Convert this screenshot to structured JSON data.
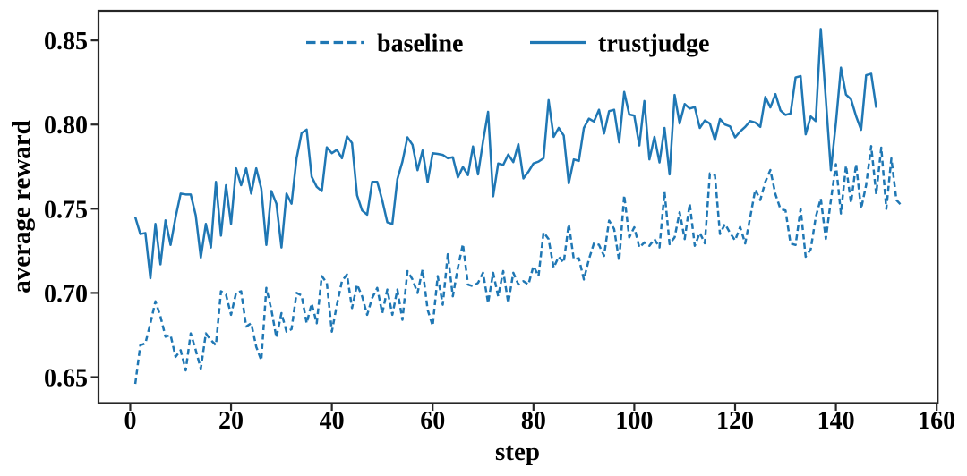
{
  "figure": {
    "background": "#ffffff",
    "spine_color": "#262626",
    "accent_color": "#1f77b4"
  },
  "chart_data": {
    "type": "line",
    "title": "",
    "xlabel": "step",
    "ylabel": "average reward",
    "grid": false,
    "legend_position": "upper center",
    "legend_frame": false,
    "xlim": [
      -6.3,
      160.2
    ],
    "ylim": [
      0.6346,
      0.8676
    ],
    "xticks": [
      0,
      20,
      40,
      60,
      80,
      100,
      120,
      140,
      160
    ],
    "xtick_labels": [
      "0",
      "20",
      "40",
      "60",
      "80",
      "100",
      "120",
      "140",
      "160"
    ],
    "yticks": [
      0.65,
      0.7,
      0.75,
      0.8,
      0.85
    ],
    "ytick_labels": [
      "0.65",
      "0.70",
      "0.75",
      "0.80",
      "0.85"
    ],
    "legend": [
      {
        "label": "baseline",
        "style": "dashed",
        "color": "#1f77b4"
      },
      {
        "label": "trustjudge",
        "style": "solid",
        "color": "#1f77b4"
      }
    ],
    "series": [
      {
        "name": "baseline",
        "style": "dashed",
        "color": "#1f77b4",
        "x_start": 1,
        "x_step": 1,
        "values": [
          0.646,
          0.669,
          0.67,
          0.682,
          0.695,
          0.686,
          0.674,
          0.675,
          0.662,
          0.666,
          0.654,
          0.676,
          0.666,
          0.655,
          0.676,
          0.672,
          0.669,
          0.701,
          0.699,
          0.687,
          0.7,
          0.701,
          0.68,
          0.682,
          0.668,
          0.66,
          0.703,
          0.69,
          0.6735,
          0.688,
          0.677,
          0.6785,
          0.7,
          0.6985,
          0.682,
          0.6937,
          0.682,
          0.71,
          0.706,
          0.677,
          0.693,
          0.707,
          0.711,
          0.691,
          0.705,
          0.698,
          0.687,
          0.697,
          0.703,
          0.688,
          0.702,
          0.687,
          0.702,
          0.684,
          0.713,
          0.708,
          0.7,
          0.714,
          0.69,
          0.6805,
          0.71,
          0.693,
          0.723,
          0.698,
          0.715,
          0.729,
          0.705,
          0.704,
          0.706,
          0.712,
          0.694,
          0.712,
          0.698,
          0.713,
          0.694,
          0.712,
          0.705,
          0.707,
          0.705,
          0.716,
          0.71,
          0.736,
          0.732,
          0.715,
          0.7215,
          0.718,
          0.741,
          0.72,
          0.7206,
          0.708,
          0.72,
          0.7295,
          0.7286,
          0.722,
          0.743,
          0.738,
          0.719,
          0.758,
          0.733,
          0.739,
          0.727,
          0.73,
          0.728,
          0.732,
          0.727,
          0.76,
          0.729,
          0.733,
          0.748,
          0.732,
          0.753,
          0.728,
          0.7357,
          0.7295,
          0.771,
          0.77,
          0.735,
          0.741,
          0.7356,
          0.7312,
          0.7392,
          0.7294,
          0.745,
          0.7614,
          0.7552,
          0.766,
          0.773,
          0.7587,
          0.7499,
          0.749,
          0.7294,
          0.7285,
          0.7499,
          0.7215,
          0.7259,
          0.745,
          0.7561,
          0.7321,
          0.755,
          0.7765,
          0.7472,
          0.7756,
          0.7534,
          0.7765,
          0.7499,
          0.7641,
          0.7872,
          0.7587,
          0.7863,
          0.7499,
          0.7799,
          0.7552,
          0.752
        ]
      },
      {
        "name": "trustjudge",
        "style": "solid",
        "color": "#1f77b4",
        "x_start": 1,
        "x_step": 1,
        "values": [
          0.745,
          0.735,
          0.7356,
          0.7087,
          0.741,
          0.717,
          0.7431,
          0.7285,
          0.745,
          0.759,
          0.7585,
          0.7585,
          0.746,
          0.721,
          0.741,
          0.727,
          0.766,
          0.734,
          0.764,
          0.741,
          0.774,
          0.764,
          0.774,
          0.759,
          0.774,
          0.762,
          0.7285,
          0.7605,
          0.753,
          0.727,
          0.759,
          0.753,
          0.78,
          0.795,
          0.797,
          0.769,
          0.763,
          0.7605,
          0.7865,
          0.783,
          0.785,
          0.78,
          0.793,
          0.789,
          0.758,
          0.749,
          0.7465,
          0.766,
          0.766,
          0.755,
          0.742,
          0.741,
          0.7676,
          0.778,
          0.7924,
          0.788,
          0.7729,
          0.7846,
          0.7658,
          0.783,
          0.7826,
          0.782,
          0.78,
          0.7806,
          0.7686,
          0.7748,
          0.77,
          0.787,
          0.7704,
          0.79,
          0.8076,
          0.7574,
          0.7769,
          0.776,
          0.7822,
          0.7777,
          0.7884,
          0.768,
          0.772,
          0.7769,
          0.778,
          0.78,
          0.8145,
          0.7927,
          0.798,
          0.7935,
          0.7651,
          0.7793,
          0.7784,
          0.798,
          0.8035,
          0.8018,
          0.8088,
          0.7947,
          0.808,
          0.8088,
          0.7894,
          0.8194,
          0.806,
          0.8053,
          0.7876,
          0.814,
          0.7793,
          0.7927,
          0.7775,
          0.798,
          0.7704,
          0.8176,
          0.8006,
          0.8122,
          0.8095,
          0.8104,
          0.798,
          0.8024,
          0.8006,
          0.7908,
          0.8033,
          0.8,
          0.7989,
          0.7924,
          0.7959,
          0.7986,
          0.8021,
          0.8012,
          0.7986,
          0.8164,
          0.8102,
          0.8181,
          0.8084,
          0.8057,
          0.8066,
          0.828,
          0.8288,
          0.7942,
          0.8048,
          0.8021,
          0.8568,
          0.8152,
          0.7729,
          0.801,
          0.8338,
          0.8178,
          0.815,
          0.805,
          0.7969,
          0.8293,
          0.8302,
          0.81
        ]
      }
    ]
  }
}
